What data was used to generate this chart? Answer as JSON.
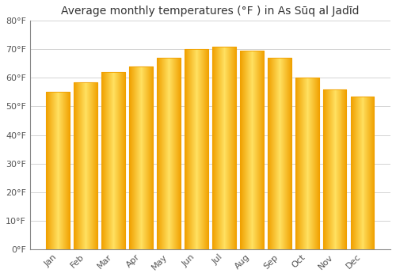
{
  "title": "Average monthly temperatures (°F ) in As Sūq al Jadīd",
  "months": [
    "Jan",
    "Feb",
    "Mar",
    "Apr",
    "May",
    "Jun",
    "Jul",
    "Aug",
    "Sep",
    "Oct",
    "Nov",
    "Dec"
  ],
  "values": [
    55,
    58.5,
    62,
    64,
    67,
    70,
    71,
    69.5,
    67,
    60,
    56,
    53.5
  ],
  "bar_edge_color": "#F0A000",
  "bar_center_color": "#FFE060",
  "background_color": "#FFFFFF",
  "grid_color": "#CCCCCC",
  "ylim": [
    0,
    80
  ],
  "yticks": [
    0,
    10,
    20,
    30,
    40,
    50,
    60,
    70,
    80
  ],
  "ytick_labels": [
    "0°F",
    "10°F",
    "20°F",
    "30°F",
    "40°F",
    "50°F",
    "60°F",
    "70°F",
    "80°F"
  ],
  "title_fontsize": 10,
  "tick_fontsize": 8,
  "bar_width": 0.85
}
